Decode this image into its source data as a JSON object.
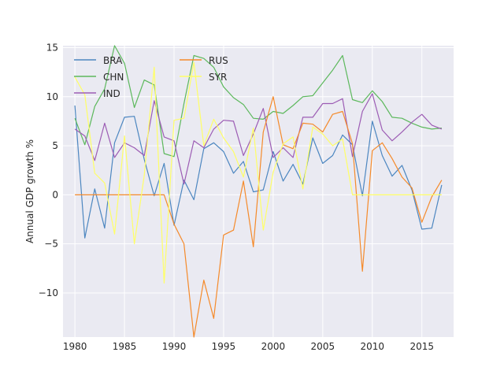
{
  "chart_data": {
    "type": "line",
    "title": "",
    "xlabel": "",
    "ylabel": "Annual GDP growth %",
    "xlim": [
      1978.8,
      2018.2
    ],
    "ylim": [
      -14.5,
      15.2
    ],
    "xticks": [
      1980,
      1985,
      1990,
      1995,
      2000,
      2005,
      2010,
      2015
    ],
    "yticks": [
      -10,
      -5,
      0,
      5,
      10,
      15
    ],
    "grid": true,
    "legend": "upper-left",
    "x": [
      1980,
      1981,
      1982,
      1983,
      1984,
      1985,
      1986,
      1987,
      1988,
      1989,
      1990,
      1991,
      1992,
      1993,
      1994,
      1995,
      1996,
      1997,
      1998,
      1999,
      2000,
      2001,
      2002,
      2003,
      2004,
      2005,
      2006,
      2007,
      2008,
      2009,
      2010,
      2011,
      2012,
      2013,
      2014,
      2015,
      2016,
      2017
    ],
    "series": [
      {
        "name": "BRA",
        "color": "#4c86c0",
        "values": [
          9.1,
          -4.4,
          0.6,
          -3.4,
          5.3,
          7.9,
          8.0,
          3.6,
          -0.1,
          3.2,
          -3.1,
          1.5,
          -0.5,
          4.7,
          5.3,
          4.4,
          2.2,
          3.4,
          0.3,
          0.5,
          4.4,
          1.4,
          3.1,
          1.1,
          5.8,
          3.2,
          4.0,
          6.1,
          5.1,
          -0.1,
          7.5,
          4.0,
          1.9,
          3.0,
          0.5,
          -3.5,
          -3.4,
          1.0
        ]
      },
      {
        "name": "CHN",
        "color": "#5cb85c",
        "values": [
          7.8,
          5.1,
          9.0,
          10.8,
          15.2,
          13.4,
          8.9,
          11.7,
          11.2,
          4.2,
          3.9,
          9.3,
          14.2,
          13.9,
          13.0,
          11.0,
          9.9,
          9.2,
          7.8,
          7.7,
          8.5,
          8.3,
          9.1,
          10.0,
          10.1,
          11.4,
          12.7,
          14.2,
          9.7,
          9.4,
          10.6,
          9.5,
          7.9,
          7.8,
          7.3,
          6.9,
          6.7,
          6.8
        ]
      },
      {
        "name": "IND",
        "color": "#9c5cb4",
        "values": [
          6.7,
          6.0,
          3.5,
          7.3,
          3.8,
          5.3,
          4.8,
          4.0,
          9.6,
          5.9,
          5.5,
          1.1,
          5.5,
          4.8,
          6.7,
          7.6,
          7.5,
          4.0,
          6.2,
          8.8,
          3.8,
          4.8,
          3.8,
          7.9,
          7.9,
          9.3,
          9.3,
          9.8,
          3.9,
          8.5,
          10.3,
          6.6,
          5.5,
          6.4,
          7.4,
          8.2,
          7.1,
          6.7
        ]
      },
      {
        "name": "RUS",
        "color": "#f58a2a",
        "values": [
          0,
          0,
          0,
          0,
          0,
          0,
          0,
          0,
          0,
          0,
          -3.0,
          -5.0,
          -14.5,
          -8.7,
          -12.6,
          -4.1,
          -3.6,
          1.4,
          -5.3,
          6.4,
          10.0,
          5.1,
          4.7,
          7.3,
          7.2,
          6.4,
          8.2,
          8.5,
          5.2,
          -7.8,
          4.5,
          5.3,
          3.7,
          1.8,
          0.7,
          -2.8,
          -0.2,
          1.5
        ]
      },
      {
        "name": "SYR",
        "color": "#ffff66",
        "values": [
          12.0,
          10.2,
          2.2,
          1.2,
          -4.0,
          6.0,
          -5.0,
          2.0,
          13.0,
          -9.0,
          7.6,
          7.8,
          13.5,
          5.0,
          7.7,
          5.8,
          4.4,
          1.8,
          6.8,
          -3.6,
          2.3,
          5.2,
          5.9,
          0.6,
          6.9,
          6.2,
          5.0,
          5.7,
          0,
          0,
          0,
          0,
          0,
          0,
          0,
          0,
          0,
          0
        ]
      }
    ]
  }
}
